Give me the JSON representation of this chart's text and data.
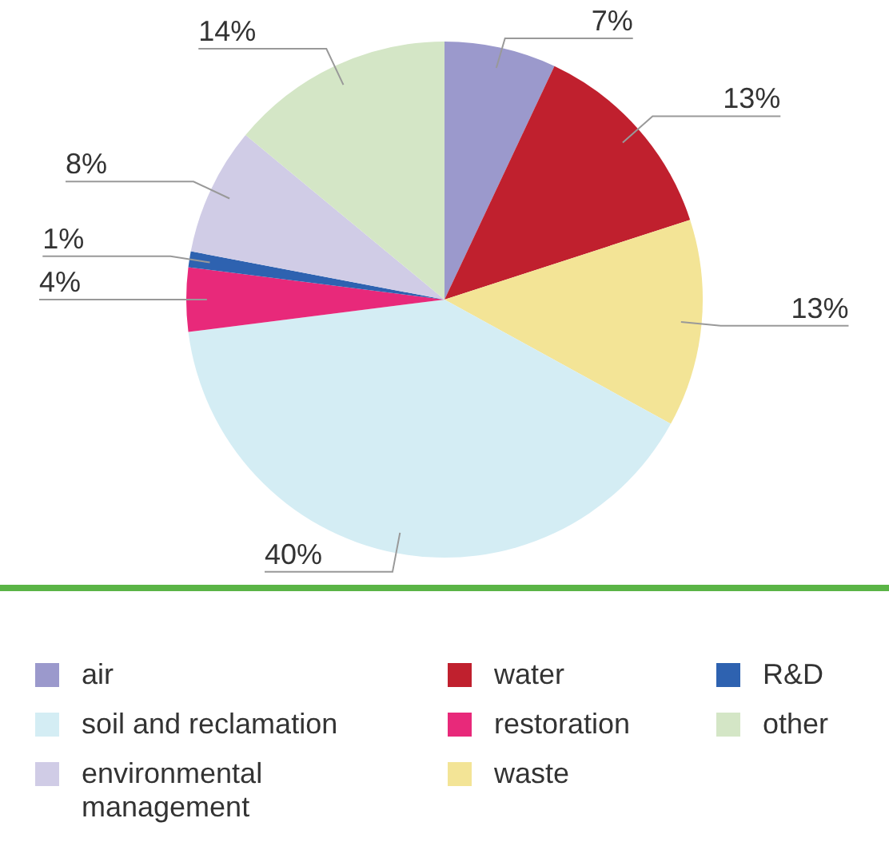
{
  "chart_data": {
    "type": "pie",
    "categories": [
      "air",
      "water",
      "waste",
      "soil and reclamation",
      "restoration",
      "R&D",
      "environmental management",
      "other"
    ],
    "values": [
      7,
      13,
      13,
      40,
      4,
      1,
      8,
      14
    ],
    "colors": [
      "#9b99cc",
      "#c0202e",
      "#f3e496",
      "#d4edf4",
      "#e8297a",
      "#2e62b0",
      "#d0cce6",
      "#d4e6c6"
    ],
    "value_labels": [
      "7%",
      "13%",
      "13%",
      "40%",
      "4%",
      "1%",
      "8%",
      "14%"
    ],
    "legend": "bottom"
  }
}
